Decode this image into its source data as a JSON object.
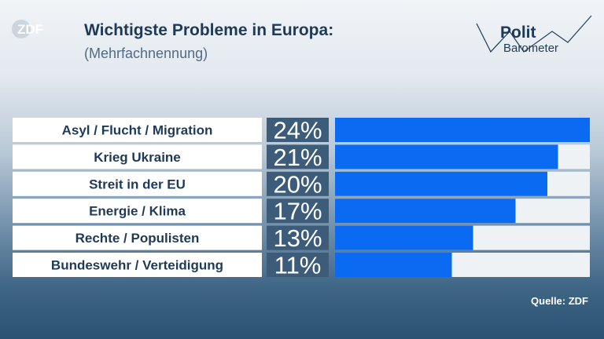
{
  "brand": {
    "logo_text": "ZDF"
  },
  "header": {
    "title": "Wichtigste Probleme in Europa:",
    "subtitle": "(Mehrfachnennung)"
  },
  "logo": {
    "line1": "Polit",
    "line2": "Barometer"
  },
  "footer": {
    "source": "Quelle: ZDF"
  },
  "colors": {
    "bar": "#0a6af2",
    "track": "#eef2f5",
    "label_bg": "#ffffff",
    "value_bg": "#3c5c7a",
    "text_dark": "#1f3a56"
  },
  "chart_data": {
    "type": "bar",
    "orientation": "horizontal",
    "categories": [
      "Asyl / Flucht / Migration",
      "Krieg Ukraine",
      "Streit in der EU",
      "Energie / Klima",
      "Rechte / Populisten",
      "Bundeswehr / Verteidigung"
    ],
    "values": [
      24,
      21,
      20,
      17,
      13,
      11
    ],
    "value_labels": [
      "24%",
      "21%",
      "20%",
      "17%",
      "13%",
      "11%"
    ],
    "unit": "%",
    "xlim": [
      0,
      24
    ]
  }
}
